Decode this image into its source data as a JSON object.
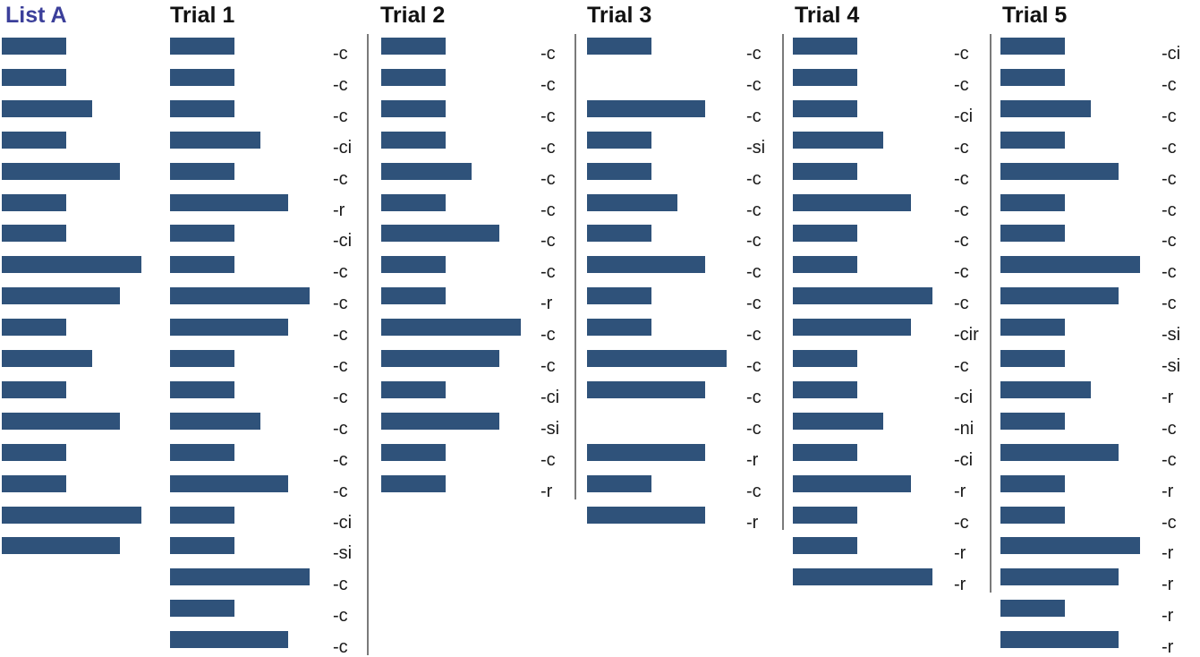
{
  "colors": {
    "bar": "#2f527a",
    "list_title": "#3b3f9a",
    "trial_title": "#111111",
    "divider": "#7a7a7a"
  },
  "chart_data": {
    "type": "table",
    "description_units": "relative word length (bar width)",
    "columns": [
      {
        "title": "List A",
        "bars": [
          2,
          2,
          3,
          2,
          4,
          2,
          2,
          5,
          4,
          2,
          3,
          2,
          4,
          2,
          2,
          5,
          4
        ],
        "codes": []
      },
      {
        "title": "Trial 1",
        "bars": [
          2,
          2,
          2,
          3,
          2,
          4,
          2,
          2,
          5,
          4,
          2,
          2,
          3,
          2,
          4,
          2,
          2,
          5,
          2,
          4
        ],
        "codes": [
          "-c",
          "-c",
          "-c",
          "-ci",
          "-c",
          "-r",
          "-ci",
          "-c",
          "-c",
          "-c",
          "-c",
          "-c",
          "-c",
          "-c",
          "-c",
          "-ci",
          "-si",
          "-c",
          "-c",
          "-c"
        ]
      },
      {
        "title": "Trial 2",
        "bars": [
          2,
          2,
          2,
          2,
          3,
          2,
          4,
          2,
          2,
          5,
          4,
          2,
          4,
          2,
          2
        ],
        "codes": [
          "-c",
          "-c",
          "-c",
          "-c",
          "-c",
          "-c",
          "-c",
          "-c",
          "-r",
          "-c",
          "-c",
          "-ci",
          "-si",
          "-c",
          "-r"
        ]
      },
      {
        "title": "Trial 3",
        "rows": [
          {
            "bar": 2,
            "code": "-c"
          },
          {
            "bar": 0,
            "code": "-c"
          },
          {
            "bar": 4,
            "code": "-c"
          },
          {
            "bar": 2,
            "code": "-si"
          },
          {
            "bar": 2,
            "code": "-c"
          },
          {
            "bar": 3,
            "code": "-c"
          },
          {
            "bar": 2,
            "code": "-c"
          },
          {
            "bar": 4,
            "code": "-c"
          },
          {
            "bar": 2,
            "code": "-c"
          },
          {
            "bar": 2,
            "code": "-c"
          },
          {
            "bar": 5,
            "code": "-c"
          },
          {
            "bar": 4,
            "code": "-c"
          },
          {
            "bar": 0,
            "code": "-c"
          },
          {
            "bar": 4,
            "code": "-r"
          },
          {
            "bar": 2,
            "code": "-c"
          },
          {
            "bar": 4,
            "code": "-r"
          }
        ]
      },
      {
        "title": "Trial 4",
        "bars": [
          2,
          2,
          2,
          3,
          2,
          4,
          2,
          2,
          5,
          4,
          2,
          2,
          3,
          2,
          4,
          2,
          2,
          5
        ],
        "codes": [
          "-c",
          "-c",
          "-ci",
          "-c",
          "-c",
          "-c",
          "-c",
          "-c",
          "-c",
          "-cir",
          "-c",
          "-ci",
          "-ni",
          "-ci",
          "-r",
          "-c",
          "-r",
          "-r"
        ]
      },
      {
        "title": "Trial 5",
        "bars": [
          2,
          2,
          3,
          2,
          4,
          2,
          2,
          5,
          4,
          2,
          2,
          3,
          2,
          4,
          2,
          2,
          5,
          4,
          2,
          4
        ],
        "codes": [
          "-ci",
          "-c",
          "-c",
          "-c",
          "-c",
          "-c",
          "-c",
          "-c",
          "-c",
          "-si",
          "-si",
          "-r",
          "-c",
          "-c",
          "-r",
          "-c",
          "-r",
          "-r",
          "-r",
          "-r"
        ]
      }
    ]
  }
}
